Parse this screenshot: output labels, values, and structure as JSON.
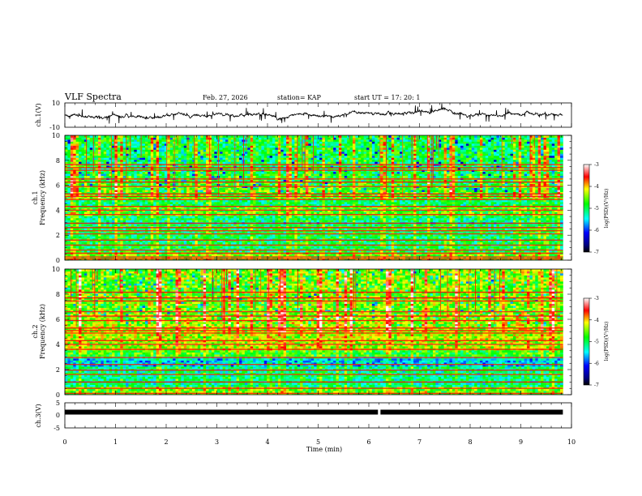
{
  "header": {
    "title": "VLF Spectra",
    "date": "Feb. 27, 2026",
    "station": "station= KAP",
    "start_ut": "start  UT  =   17: 20: 1"
  },
  "chart_data": [
    {
      "id": "ch1_waveform",
      "type": "line",
      "ylabel": "ch.1(V)",
      "ylim": [
        -10,
        10
      ],
      "yticks": [
        "10",
        "-10"
      ],
      "xlim": [
        0,
        10
      ],
      "data_end_min": 9.83
    },
    {
      "id": "ch1_spectrogram",
      "type": "heatmap",
      "ylabel_line1": "ch.1",
      "ylabel_line2": "Frequency (kHz)",
      "ylim": [
        0,
        10
      ],
      "yticks": [
        "0",
        "2",
        "4",
        "6",
        "8",
        "10"
      ],
      "xlim": [
        0,
        10
      ],
      "data_end_min": 9.83,
      "colorbar": {
        "label": "log(PSD)(V²/Hz)",
        "ticks": [
          "-3",
          "-4",
          "-5",
          "-6",
          "-7"
        ],
        "range": [
          -7,
          -3
        ]
      },
      "bands_khz": [
        0.1,
        0.25,
        0.55,
        0.8,
        1.2,
        1.6,
        2.1,
        2.35,
        2.6,
        2.95,
        3.65,
        4.0,
        4.3,
        4.85,
        5.1,
        5.3,
        5.9,
        6.25,
        6.5,
        7.2,
        7.4,
        7.65
      ],
      "noise_bands_khz": [
        [
          0.0,
          0.7
        ],
        [
          2.9,
          3.5
        ],
        [
          4.35,
          4.8
        ]
      ]
    },
    {
      "id": "ch2_spectrogram",
      "type": "heatmap",
      "ylabel_line1": "ch.2",
      "ylabel_line2": "Frequency (kHz)",
      "ylim": [
        0,
        10
      ],
      "yticks": [
        "0",
        "2",
        "4",
        "6",
        "8",
        "10"
      ],
      "xlim": [
        0,
        10
      ],
      "data_end_min": 9.83,
      "colorbar": {
        "label": "log(PSD)(V²/Hz)",
        "ticks": [
          "-3",
          "-4",
          "-5",
          "-6",
          "-7"
        ],
        "range": [
          -7,
          -3
        ]
      },
      "bands_khz": [
        0.1,
        0.5,
        1.0,
        1.6,
        1.95,
        2.4,
        2.95,
        3.6,
        4.0,
        4.3,
        4.9,
        5.1,
        5.3,
        5.9,
        6.25,
        6.6,
        7.45,
        7.7,
        8.15
      ],
      "noise_bands_khz": [
        [
          0.0,
          0.6
        ],
        [
          2.3,
          2.9
        ],
        [
          3.0,
          3.5
        ]
      ]
    },
    {
      "id": "ch3_waveform",
      "type": "line",
      "ylabel": "ch.3(V)",
      "ylim": [
        -5,
        5
      ],
      "yticks": [
        "5",
        "0",
        "-5"
      ],
      "xlim": [
        0,
        10
      ],
      "xticks": [
        "0",
        "1",
        "2",
        "3",
        "4",
        "5",
        "6",
        "7",
        "8",
        "9",
        "10"
      ],
      "xlabel": "Time (min)",
      "baseline_v": 0,
      "gap_min": 6.18,
      "data_end_min": 9.83
    }
  ]
}
